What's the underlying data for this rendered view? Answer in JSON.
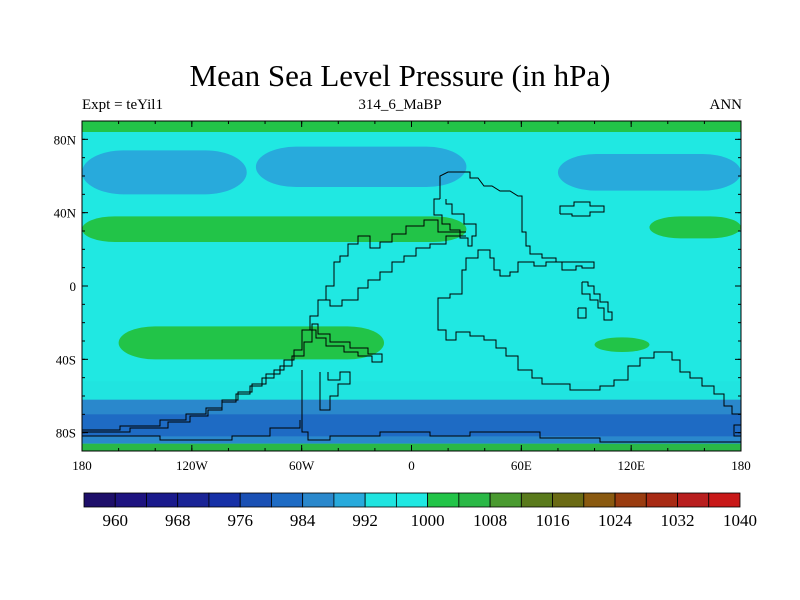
{
  "chart_data": {
    "type": "heatmap",
    "title": "Mean Sea Level Pressure (in hPa)",
    "left_string": "Expt = teYil1",
    "center_string": "314_6_MaBP",
    "right_string": "ANN",
    "xlim": [
      -180,
      180
    ],
    "ylim": [
      -90,
      90
    ],
    "x_ticks": [
      {
        "value": -180,
        "label": "180"
      },
      {
        "value": -120,
        "label": "120W"
      },
      {
        "value": -60,
        "label": "60W"
      },
      {
        "value": 0,
        "label": "0"
      },
      {
        "value": 60,
        "label": "60E"
      },
      {
        "value": 120,
        "label": "120E"
      },
      {
        "value": 180,
        "label": "180"
      }
    ],
    "y_ticks": [
      {
        "value": 80,
        "label": "80N"
      },
      {
        "value": 40,
        "label": "40N"
      },
      {
        "value": 0,
        "label": "0"
      },
      {
        "value": -40,
        "label": "40S"
      },
      {
        "value": -80,
        "label": "80S"
      }
    ],
    "colorbar": {
      "levels": [
        960,
        964,
        968,
        972,
        976,
        980,
        984,
        988,
        992,
        996,
        1000,
        1004,
        1008,
        1012,
        1016,
        1020,
        1024,
        1028,
        1032,
        1036,
        1040
      ],
      "labels": [
        "960",
        "968",
        "976",
        "984",
        "992",
        "1000",
        "1008",
        "1016",
        "1024",
        "1032",
        "1040"
      ],
      "colors": [
        "#1e0f6a",
        "#1e1380",
        "#1a1a8c",
        "#1a2496",
        "#1630a6",
        "#1a50b4",
        "#1e6bc4",
        "#2a88cc",
        "#28aadc",
        "#20e4e0",
        "#20e8e2",
        "#22c448",
        "#2ab846",
        "#4a9a30",
        "#5a7a1c",
        "#6a6a14",
        "#8a5a10",
        "#9a3c10",
        "#a82a14",
        "#b81e1e",
        "#c81818"
      ]
    },
    "field_regions": [
      {
        "band": "background",
        "level": 1000
      },
      {
        "band": "north_polar_rim",
        "level": 1004,
        "lat": [
          84,
          90
        ]
      },
      {
        "band": "north_subpolar_low_pacific",
        "level": 992,
        "lon": [
          -180,
          -90
        ],
        "lat": [
          50,
          74
        ]
      },
      {
        "band": "north_subpolar_low_atlantic",
        "level": 992,
        "lon": [
          -85,
          30
        ],
        "lat": [
          54,
          76
        ]
      },
      {
        "band": "north_subpolar_low_east",
        "level": 992,
        "lon": [
          80,
          180
        ],
        "lat": [
          52,
          72
        ]
      },
      {
        "band": "north_subtropical_high_west",
        "level": 1004,
        "lon": [
          -180,
          30
        ],
        "lat": [
          24,
          38
        ]
      },
      {
        "band": "north_subtropical_high_east",
        "level": 1004,
        "lon": [
          130,
          180
        ],
        "lat": [
          26,
          38
        ]
      },
      {
        "band": "south_subtropical_high_west",
        "level": 1004,
        "lon": [
          -160,
          -15
        ],
        "lat": [
          -40,
          -22
        ]
      },
      {
        "band": "south_subtropical_high_east",
        "level": 1004,
        "lon": [
          100,
          130
        ],
        "lat": [
          -36,
          -28
        ]
      },
      {
        "band": "southern_trough_outer",
        "level": 996,
        "lat": [
          -90,
          -52
        ]
      },
      {
        "band": "southern_trough_inner",
        "level": 988,
        "lat": [
          -86,
          -62
        ]
      },
      {
        "band": "southern_trough_core",
        "level": 984,
        "lat": [
          -82,
          -70
        ]
      },
      {
        "band": "south_polar_rim",
        "level": 1008,
        "lat": [
          -90,
          -86
        ]
      }
    ]
  }
}
